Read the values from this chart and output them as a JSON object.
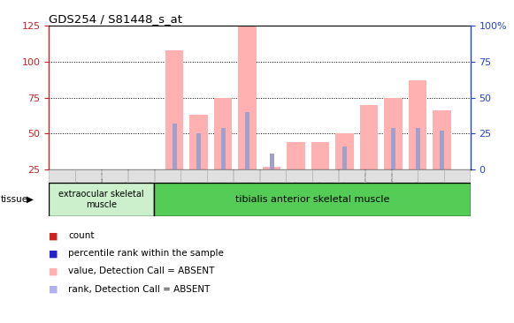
{
  "title": "GDS254 / S81448_s_at",
  "categories": [
    "GSM4242",
    "GSM4243",
    "GSM4244",
    "GSM4245",
    "GSM5553",
    "GSM5554",
    "GSM5555",
    "GSM5557",
    "GSM5559",
    "GSM5560",
    "GSM5561",
    "GSM5562",
    "GSM5563",
    "GSM5564",
    "GSM5565",
    "GSM5566"
  ],
  "pink_bars": [
    0,
    0,
    0,
    0,
    108,
    63,
    75,
    125,
    27,
    44,
    44,
    50,
    70,
    75,
    87,
    66
  ],
  "blue_bars": [
    0,
    0,
    0,
    0,
    57,
    50,
    54,
    65,
    36,
    0,
    0,
    41,
    0,
    54,
    54,
    52
  ],
  "ylim_left": [
    25,
    125
  ],
  "ylim_right": [
    0,
    100
  ],
  "yticks_left": [
    25,
    50,
    75,
    100,
    125
  ],
  "yticks_right": [
    0,
    25,
    50,
    75,
    100
  ],
  "ytick_right_labels": [
    "0",
    "25",
    "50",
    "75",
    "100%"
  ],
  "grid_lines": [
    50,
    75,
    100
  ],
  "pink_color": "#ffb0b0",
  "blue_color": "#a0a0cc",
  "axis_left_color": "#cc2222",
  "axis_right_color": "#2244cc",
  "legend_items": [
    {
      "label": "count",
      "color": "#cc2222"
    },
    {
      "label": "percentile rank within the sample",
      "color": "#2222cc"
    },
    {
      "label": "value, Detection Call = ABSENT",
      "color": "#ffb0b0"
    },
    {
      "label": "rank, Detection Call = ABSENT",
      "color": "#b0b0ee"
    }
  ],
  "tissue1_label": "extraocular skeletal\nmuscle",
  "tissue2_label": "tibialis anterior skeletal muscle",
  "tissue1_color": "#ccf0cc",
  "tissue2_color": "#55cc55",
  "tissue_text_label": "tissue"
}
